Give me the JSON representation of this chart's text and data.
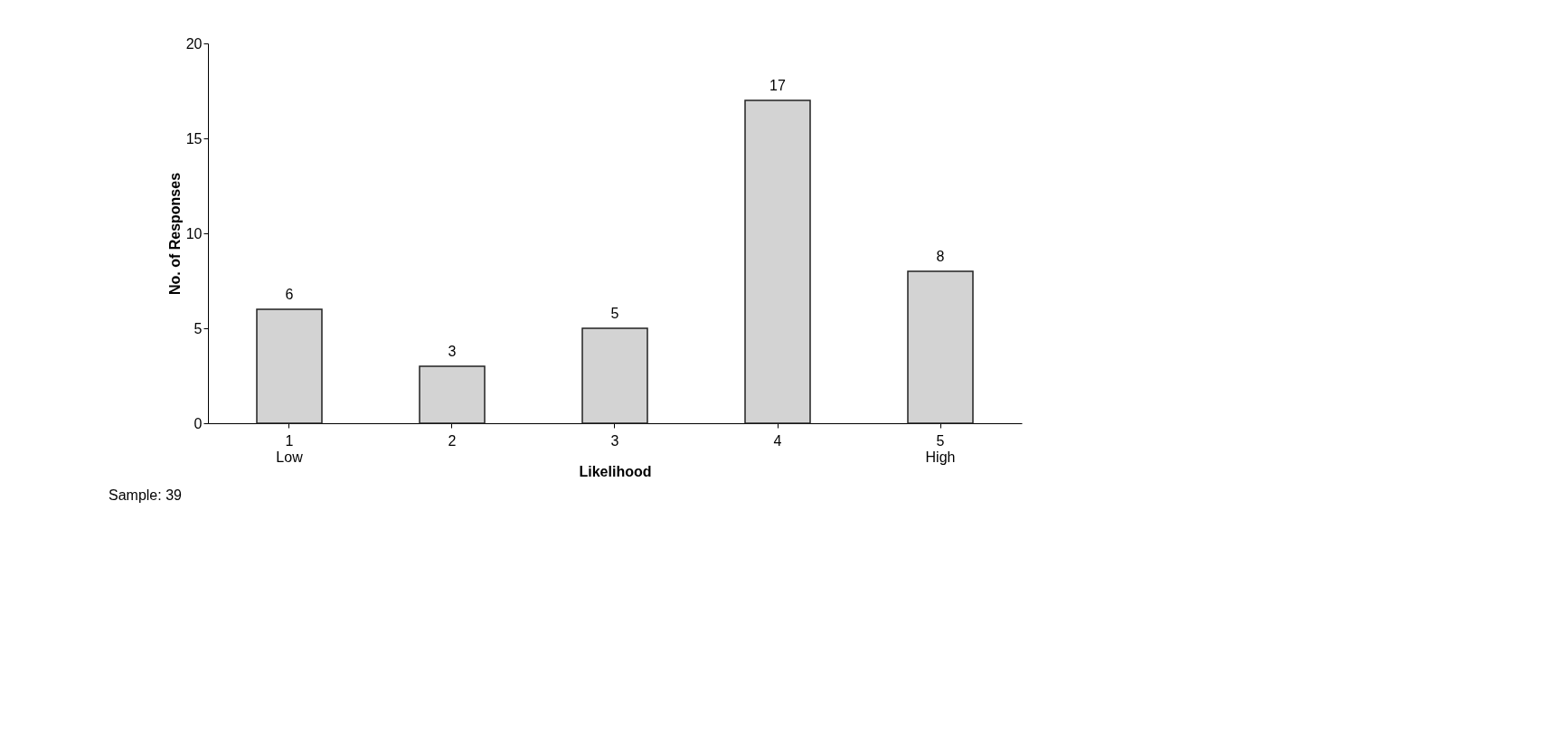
{
  "chart_data": {
    "type": "bar",
    "xlabel": "Likelihood",
    "ylabel": "No. of Responses",
    "categories": [
      "1\nLow",
      "2",
      "3",
      "4",
      "5\nHigh"
    ],
    "values": [
      6,
      3,
      5,
      17,
      8
    ],
    "color": "#d3d3d3",
    "ylim": [
      0,
      20
    ],
    "yticks": [
      0,
      5,
      10,
      15,
      20
    ],
    "grid": false,
    "data_labels": true,
    "annotations": [
      "Sample: 39"
    ]
  }
}
